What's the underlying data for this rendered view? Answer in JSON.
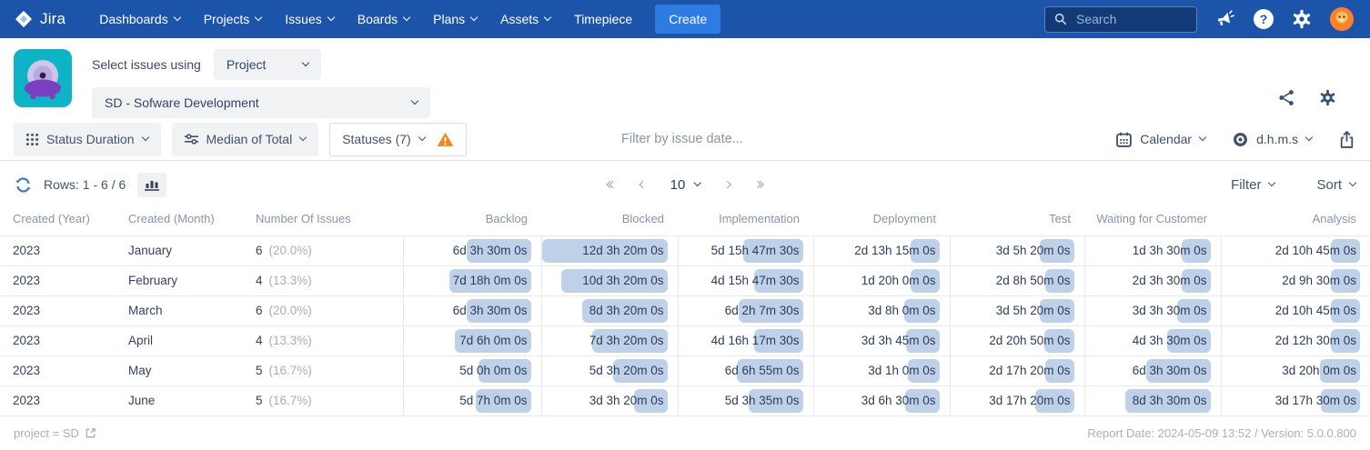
{
  "navbar": {
    "logo_text": "Jira",
    "items": [
      {
        "label": "Dashboards",
        "chevron": true
      },
      {
        "label": "Projects",
        "chevron": true
      },
      {
        "label": "Issues",
        "chevron": true
      },
      {
        "label": "Boards",
        "chevron": true
      },
      {
        "label": "Plans",
        "chevron": true
      },
      {
        "label": "Assets",
        "chevron": true
      },
      {
        "label": "Timepiece",
        "chevron": false
      }
    ],
    "create_label": "Create",
    "search_placeholder": "Search",
    "help_glyph": "?"
  },
  "header": {
    "select_issues_label": "Select issues using",
    "issue_source": "Project",
    "project": "SD - Sofware Development"
  },
  "toolbar": {
    "report_type": "Status Duration",
    "metric": "Median of Total",
    "statuses": "Statuses (7)",
    "date_filter_placeholder": "Filter by issue date...",
    "calendar_label": "Calendar",
    "format_label": "d.h.m.s"
  },
  "controls": {
    "rows_label": "Rows: 1 - 6 / 6",
    "page_size": "10",
    "filter_label": "Filter",
    "sort_label": "Sort"
  },
  "table": {
    "columns": [
      "Created (Year)",
      "Created (Month)",
      "Number Of Issues",
      "Backlog",
      "Blocked",
      "Implementation",
      "Deployment",
      "Test",
      "Waiting for Customer",
      "Analysis"
    ],
    "rows": [
      {
        "year": "2023",
        "month": "January",
        "count": "6",
        "pct": "(20.0%)",
        "durations": [
          "6d 3h 30m 0s",
          "12d 3h 20m 0s",
          "5d 15h 47m 30s",
          "2d 13h 15m 0s",
          "3d 5h 20m 0s",
          "1d 3h 30m 0s",
          "2d 10h 45m 0s"
        ]
      },
      {
        "year": "2023",
        "month": "February",
        "count": "4",
        "pct": "(13.3%)",
        "durations": [
          "7d 18h 0m 0s",
          "10d 3h 20m 0s",
          "4d 15h 47m 30s",
          "1d 20h 0m 0s",
          "2d 8h 50m 0s",
          "2d 3h 30m 0s",
          "2d 9h 30m 0s"
        ]
      },
      {
        "year": "2023",
        "month": "March",
        "count": "6",
        "pct": "(20.0%)",
        "durations": [
          "6d 3h 30m 0s",
          "8d 3h 20m 0s",
          "6d 2h 7m 30s",
          "3d 8h 0m 0s",
          "3d 5h 20m 0s",
          "3d 3h 30m 0s",
          "2d 10h 45m 0s"
        ]
      },
      {
        "year": "2023",
        "month": "April",
        "count": "4",
        "pct": "(13.3%)",
        "durations": [
          "7d 6h 0m 0s",
          "7d 3h 20m 0s",
          "4d 16h 17m 30s",
          "3d 3h 45m 0s",
          "2d 20h 50m 0s",
          "4d 3h 30m 0s",
          "2d 12h 30m 0s"
        ]
      },
      {
        "year": "2023",
        "month": "May",
        "count": "5",
        "pct": "(16.7%)",
        "durations": [
          "5d 0h 0m 0s",
          "5d 3h 20m 0s",
          "6d 6h 55m 0s",
          "3d 1h 0m 0s",
          "2d 17h 20m 0s",
          "6d 3h 30m 0s",
          "3d 20h 0m 0s"
        ]
      },
      {
        "year": "2023",
        "month": "June",
        "count": "5",
        "pct": "(16.7%)",
        "durations": [
          "5d 7h 0m 0s",
          "3d 3h 20m 0s",
          "5d 3h 35m 0s",
          "3d 6h 30m 0s",
          "3d 17h 20m 0s",
          "8d 3h 30m 0s",
          "3d 17h 30m 0s"
        ]
      }
    ]
  },
  "footer": {
    "query": "project = SD",
    "report_info": "Report Date: 2024-05-09 13:52 / Version: 5.0.0.800"
  },
  "colors": {
    "navbar_bg": "#1b54a9",
    "create_button": "#2e7ce1",
    "search_bg": "#113a77",
    "avatar_bg": "#f9812a",
    "app_icon_bg": "#0cb4c6",
    "monster_purple": "#7b3fc1",
    "bar_fill": "#bed1e8",
    "warning": "#f08a16",
    "refresh_icon": "#3a78c2"
  }
}
